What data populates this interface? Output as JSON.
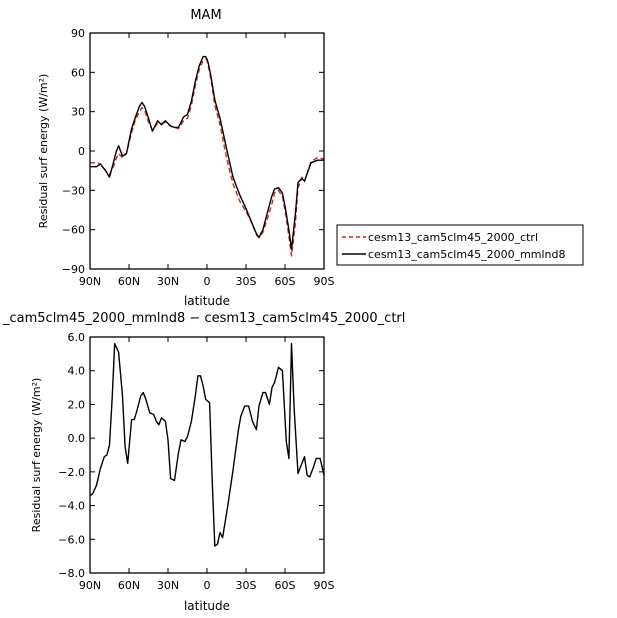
{
  "chart_data": [
    {
      "type": "line",
      "title": "MAM",
      "xlabel": "latitude",
      "ylabel": "Residual surf energy  (W/m²)",
      "xlim": [
        -90,
        90
      ],
      "ylim": [
        -90,
        90
      ],
      "x_ticks": [
        -90,
        -60,
        -30,
        0,
        30,
        60,
        90
      ],
      "x_tick_labels": [
        "90N",
        "60N",
        "30N",
        "0",
        "30S",
        "60S",
        "90S"
      ],
      "y_ticks": [
        -90,
        -60,
        -30,
        0,
        30,
        60,
        90
      ],
      "y_tick_labels": [
        "−90",
        "−60",
        "−30",
        "0",
        "30",
        "60",
        "90"
      ],
      "legend_position": "right",
      "series": [
        {
          "name": "cesm13_cam5clm45_2000_ctrl",
          "color": "#d62020",
          "dash": "dashed",
          "x": [
            -90,
            -85,
            -82,
            -78,
            -75,
            -72,
            -70,
            -68,
            -65,
            -62,
            -58,
            -55,
            -52,
            -50,
            -48,
            -45,
            -42,
            -38,
            -35,
            -32,
            -28,
            -25,
            -22,
            -18,
            -15,
            -12,
            -9,
            -6,
            -3,
            -1,
            0,
            1,
            3,
            6,
            10,
            15,
            20,
            25,
            30,
            35,
            38,
            40,
            43,
            47,
            50,
            52,
            55,
            58,
            60,
            63,
            65,
            68,
            70,
            73,
            75,
            80,
            85,
            90
          ],
          "y": [
            -9,
            -9,
            -10,
            -15,
            -18,
            -12,
            -6,
            -2,
            -5,
            -2,
            14,
            24,
            30,
            33,
            31,
            22,
            16,
            21,
            21,
            22,
            19,
            18,
            17,
            23,
            25,
            35,
            50,
            62,
            69,
            70,
            69,
            65,
            55,
            35,
            20,
            -5,
            -25,
            -38,
            -46,
            -56,
            -64,
            -66,
            -62,
            -50,
            -40,
            -32,
            -30,
            -35,
            -45,
            -65,
            -80,
            -55,
            -28,
            -20,
            -23,
            -8,
            -5,
            -6
          ]
        },
        {
          "name": "cesm13_cam5clm45_2000_mmlnd8",
          "color": "#000000",
          "dash": "solid",
          "x": [
            -90,
            -85,
            -82,
            -78,
            -75,
            -72,
            -70,
            -68,
            -65,
            -62,
            -58,
            -55,
            -52,
            -50,
            -48,
            -45,
            -42,
            -38,
            -35,
            -32,
            -28,
            -25,
            -22,
            -18,
            -15,
            -12,
            -9,
            -6,
            -3,
            -1,
            0,
            1,
            3,
            6,
            10,
            15,
            20,
            25,
            30,
            35,
            38,
            40,
            43,
            47,
            50,
            52,
            55,
            58,
            60,
            63,
            65,
            68,
            70,
            73,
            75,
            80,
            85,
            90
          ],
          "y": [
            -12,
            -12,
            -10,
            -15,
            -20,
            -9,
            -1,
            4,
            -4,
            -2,
            17,
            26,
            34,
            37,
            34,
            25,
            15,
            23,
            20,
            23,
            19,
            18,
            18,
            26,
            28,
            38,
            53,
            65,
            72,
            72,
            70,
            67,
            57,
            39,
            25,
            2,
            -20,
            -33,
            -44,
            -56,
            -63,
            -66,
            -60,
            -45,
            -34,
            -29,
            -28,
            -32,
            -42,
            -60,
            -75,
            -48,
            -24,
            -21,
            -23,
            -9,
            -7,
            -7
          ]
        }
      ]
    },
    {
      "type": "line",
      "title": "_cam5clm45_2000_mmlnd8 − cesm13_cam5clm45_2000_ctrl",
      "xlabel": "latitude",
      "ylabel": "Residual surf energy  (W/m²)",
      "xlim": [
        -90,
        90
      ],
      "ylim": [
        -8,
        6
      ],
      "x_ticks": [
        -90,
        -60,
        -30,
        0,
        30,
        60,
        90
      ],
      "x_tick_labels": [
        "90N",
        "60N",
        "30N",
        "0",
        "30S",
        "60S",
        "90S"
      ],
      "y_ticks": [
        -8,
        -6,
        -4,
        -2,
        0,
        2,
        4,
        6
      ],
      "y_tick_labels": [
        "−8.0",
        "−6.0",
        "−4.0",
        "−2.0",
        "0.0",
        "2.0",
        "4.0",
        "6.0"
      ],
      "series": [
        {
          "color": "#000000",
          "dash": "solid",
          "x": [
            -90,
            -88,
            -85,
            -82,
            -79,
            -77,
            -75,
            -73,
            -71,
            -68,
            -65,
            -63,
            -61,
            -58,
            -56,
            -54,
            -51,
            -49,
            -47,
            -44,
            -41,
            -39,
            -37,
            -35,
            -32,
            -30,
            -28,
            -25,
            -22,
            -20,
            -17,
            -15,
            -12,
            -9,
            -7,
            -5,
            -3,
            -1,
            2,
            4,
            6,
            8,
            10,
            12,
            16,
            20,
            24,
            26,
            29,
            32,
            35,
            38,
            40,
            43,
            45,
            48,
            50,
            52,
            55,
            58,
            61,
            63,
            65,
            67,
            70,
            72,
            75,
            77,
            79,
            82,
            84,
            87,
            90
          ],
          "y": [
            -3.4,
            -3.3,
            -2.8,
            -1.8,
            -1.1,
            -1.0,
            -0.4,
            2.3,
            5.6,
            5.1,
            2.5,
            -0.5,
            -1.5,
            1.1,
            1.1,
            1.6,
            2.5,
            2.7,
            2.3,
            1.5,
            1.4,
            1.0,
            0.8,
            1.2,
            1.0,
            -0.1,
            -2.4,
            -2.5,
            -0.9,
            -0.1,
            -0.2,
            0.1,
            1.0,
            2.5,
            3.7,
            3.7,
            3.1,
            2.3,
            2.1,
            -2.5,
            -6.4,
            -6.3,
            -5.6,
            -5.9,
            -4.0,
            -1.9,
            0.4,
            1.3,
            1.9,
            1.9,
            1.0,
            0.5,
            1.9,
            2.7,
            2.7,
            2.0,
            3.0,
            3.3,
            4.2,
            4.0,
            -0.2,
            -1.2,
            5.6,
            1.8,
            -2.1,
            -1.7,
            -1.1,
            -2.2,
            -2.3,
            -1.7,
            -1.2,
            -1.2,
            -2.2
          ]
        }
      ]
    }
  ]
}
